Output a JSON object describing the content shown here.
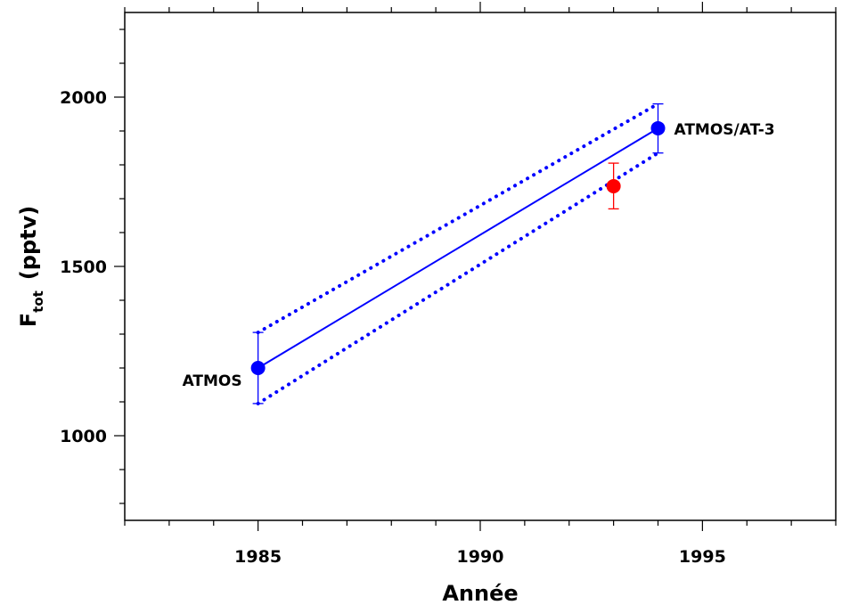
{
  "chart_data": {
    "type": "scatter",
    "xlabel": "Année",
    "ylabel": {
      "main": "F",
      "subscript": "tot",
      "unit": "(pptv)"
    },
    "xlim": [
      1982,
      1998
    ],
    "ylim": [
      750,
      2250
    ],
    "x_ticks": [
      1985,
      1990,
      1995
    ],
    "y_ticks": [
      1000,
      1500,
      2000
    ],
    "x_tick_labels": [
      "1985",
      "1990",
      "1995"
    ],
    "y_tick_labels": [
      "1000",
      "1500",
      "2000"
    ],
    "grid": false,
    "series": [
      {
        "name": "ATMOS",
        "color": "#0000ff",
        "points": [
          {
            "x": 1985,
            "y": 1200,
            "err_low": 1095,
            "err_high": 1305,
            "label": "ATMOS"
          }
        ]
      },
      {
        "name": "ATMOS/AT-3",
        "color": "#0000ff",
        "points": [
          {
            "x": 1994,
            "y": 1908,
            "err_low": 1835,
            "err_high": 1980,
            "label": "ATMOS/AT-3"
          }
        ]
      },
      {
        "color": "#ff0000",
        "points": [
          {
            "x": 1993,
            "y": 1737,
            "err_low": 1670,
            "err_high": 1805
          }
        ]
      }
    ],
    "trend_line": {
      "color": "#0000ff",
      "style": "solid",
      "from": {
        "x": 1985,
        "y": 1200
      },
      "to": {
        "x": 1994,
        "y": 1908
      }
    },
    "bounds": [
      {
        "color": "#0000ff",
        "style": "dotted",
        "from": {
          "x": 1985,
          "y": 1305
        },
        "to": {
          "x": 1994,
          "y": 1980
        }
      },
      {
        "color": "#0000ff",
        "style": "dotted",
        "from": {
          "x": 1985,
          "y": 1095
        },
        "to": {
          "x": 1994,
          "y": 1835
        }
      }
    ]
  }
}
